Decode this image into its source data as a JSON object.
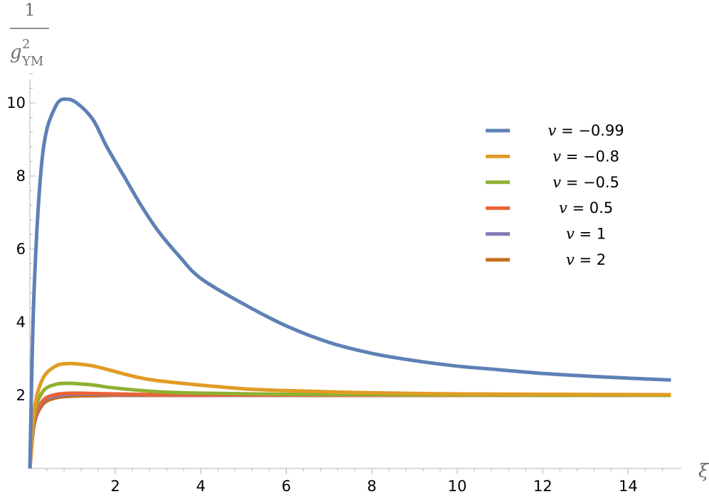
{
  "chart_data": {
    "type": "line",
    "xlabel": "ξ",
    "ylabel": {
      "numerator": "1",
      "base": "g",
      "superscript": "2",
      "subscript": "YM"
    },
    "xlim": [
      0,
      15
    ],
    "ylim": [
      0,
      10
    ],
    "xticks": [
      2,
      4,
      6,
      8,
      10,
      12,
      14
    ],
    "yticks": [
      2,
      4,
      6,
      8,
      10
    ],
    "grid": false,
    "legend_position": "top-right",
    "series": [
      {
        "name": "v = −0.99",
        "name_var": "v",
        "name_rest": " = −0.99",
        "color": "#5e81b5",
        "x": [
          0,
          0.1,
          0.3,
          0.6,
          0.9,
          1.2,
          1.5,
          1.8,
          2.2,
          2.6,
          3,
          3.5,
          4,
          5,
          6,
          7,
          8,
          9,
          10,
          11,
          12,
          13,
          14,
          15
        ],
        "y": [
          0,
          4.9,
          8.6,
          9.9,
          10.1,
          9.9,
          9.5,
          8.8,
          8.0,
          7.2,
          6.5,
          5.8,
          5.2,
          4.5,
          3.9,
          3.45,
          3.15,
          2.95,
          2.8,
          2.7,
          2.6,
          2.53,
          2.47,
          2.42
        ]
      },
      {
        "name": "v = −0.8",
        "name_var": "v",
        "name_rest": " = −0.8",
        "color": "#e19c24",
        "x": [
          0,
          0.1,
          0.3,
          0.6,
          0.9,
          1.2,
          1.5,
          2,
          2.5,
          3,
          4,
          5,
          6,
          8,
          10,
          12,
          15
        ],
        "y": [
          0,
          1.6,
          2.45,
          2.8,
          2.87,
          2.85,
          2.8,
          2.65,
          2.5,
          2.4,
          2.28,
          2.18,
          2.13,
          2.07,
          2.04,
          2.03,
          2.02
        ]
      },
      {
        "name": "v = −0.5",
        "name_var": "v",
        "name_rest": " = −0.5",
        "color": "#8fb032",
        "x": [
          0,
          0.1,
          0.3,
          0.6,
          0.9,
          1.2,
          1.5,
          2,
          3,
          4,
          6,
          8,
          10,
          15
        ],
        "y": [
          0,
          1.45,
          2.1,
          2.3,
          2.33,
          2.31,
          2.28,
          2.2,
          2.1,
          2.06,
          2.03,
          2.02,
          2.01,
          2.0
        ]
      },
      {
        "name": "v = 0.5",
        "name_var": "v",
        "name_rest": " = 0.5",
        "color": "#eb6235",
        "x": [
          0,
          0.1,
          0.3,
          0.6,
          1,
          1.5,
          2,
          3,
          5,
          10,
          15
        ],
        "y": [
          0,
          1.3,
          1.85,
          2.02,
          2.06,
          2.05,
          2.04,
          2.02,
          2.01,
          2.0,
          2.0
        ]
      },
      {
        "name": "v = 1",
        "name_var": "v",
        "name_rest": " = 1",
        "color": "#8778b3",
        "x": [
          0,
          0.1,
          0.3,
          0.6,
          1,
          1.5,
          2,
          3,
          5,
          10,
          15
        ],
        "y": [
          0,
          1.25,
          1.82,
          1.98,
          2.03,
          2.03,
          2.02,
          2.01,
          2.0,
          2.0,
          2.0
        ]
      },
      {
        "name": "v = 2",
        "name_var": "v",
        "name_rest": " = 2",
        "color": "#c56e1a",
        "x": [
          0,
          0.1,
          0.3,
          0.6,
          1,
          1.5,
          2,
          3,
          5,
          10,
          15
        ],
        "y": [
          0,
          1.2,
          1.75,
          1.93,
          1.98,
          1.99,
          2.0,
          2.0,
          2.0,
          2.0,
          2.0
        ]
      }
    ]
  }
}
